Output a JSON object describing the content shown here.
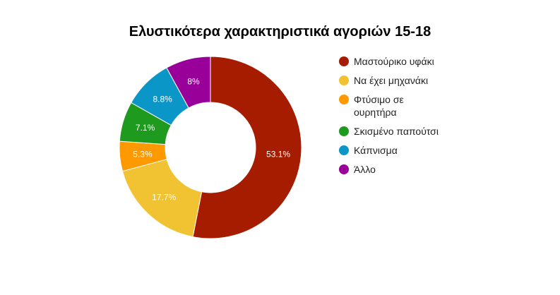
{
  "chart_data": {
    "type": "pie",
    "donut": true,
    "title": "Ελυστικότερα χαρακτηριστικά αγοριών 15-18",
    "categories": [
      "Μαστούρικο υφάκι",
      "Να έχει μηχανάκι",
      "Φτύσιμο σε ουρητήρα",
      "Σκισμένο παπούτσι",
      "Κάπνισμα",
      "Άλλο"
    ],
    "values": [
      53.1,
      17.7,
      5.3,
      7.1,
      8.8,
      8
    ],
    "labels": [
      "53.1%",
      "17.7%",
      "5.3%",
      "7.1%",
      "8.8%",
      "8%"
    ],
    "colors": [
      "#a61c00",
      "#f1c232",
      "#ff9900",
      "#1e9a1e",
      "#0b96c8",
      "#990099"
    ],
    "legend_position": "right"
  }
}
